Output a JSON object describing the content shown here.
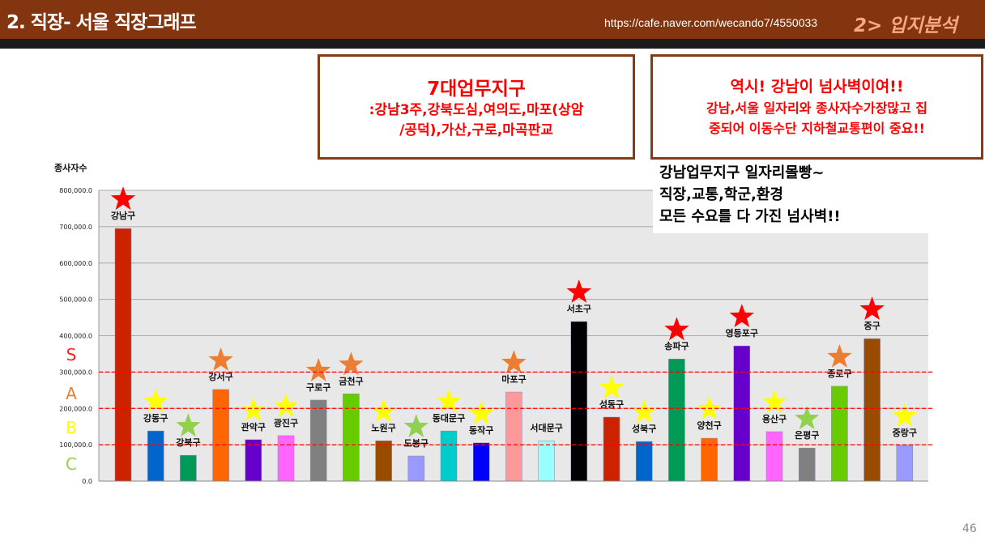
{
  "header": {
    "title": "2. 직장- 서울  직장그래프",
    "url": "https://cafe.naver.com/wecando7/4550033",
    "section": "2> 입지분석"
  },
  "box1": {
    "heading": "7대업무지구",
    "lines": [
      ":강남3주,강북도심,여의도,마포(상암",
      "/공덕),가산,구로,마곡판교"
    ]
  },
  "box2": {
    "heading": "역시! 강남이 넘사벽이여!!",
    "lines": [
      "강남,서울  일자리와 종사자수가장많고 집",
      "중되어 이동수단 지하철교통편이 중요!!"
    ]
  },
  "note": {
    "lines": [
      "강남업무지구 일자리몰빵~",
      "직장,교통,학군,환경",
      "모든 수요를 다 가진 넘사벽!!"
    ]
  },
  "page_number": "46",
  "chart_data": {
    "type": "bar",
    "title": "",
    "xlabel": "",
    "ylabel": "종사자수",
    "ylim": [
      0,
      800000
    ],
    "yticks": [
      "0.0",
      "100,000.0",
      "200,000.0",
      "300,000.0",
      "400,000.0",
      "500,000.0",
      "600,000.0",
      "700,000.0",
      "800,000.0"
    ],
    "categories": [
      "강남구",
      "강동구",
      "강북구",
      "강서구",
      "관악구",
      "광진구",
      "구로구",
      "금천구",
      "노원구",
      "도봉구",
      "동대문구",
      "동작구",
      "마포구",
      "서대문구",
      "서초구",
      "성동구",
      "성북구",
      "송파구",
      "양천구",
      "영등포구",
      "용산구",
      "은평구",
      "종로구",
      "중구",
      "중랑구"
    ],
    "values": [
      695000,
      138000,
      71000,
      252000,
      114000,
      125000,
      223000,
      240000,
      111000,
      69000,
      138000,
      105000,
      245000,
      111000,
      439000,
      176000,
      109000,
      336000,
      118000,
      372000,
      136000,
      91000,
      261000,
      392000,
      98000
    ],
    "bar_colors": [
      "#cc2200",
      "#0066cc",
      "#009955",
      "#ff6600",
      "#6600cc",
      "#ff66ff",
      "#808080",
      "#66cc00",
      "#994c00",
      "#9999ff",
      "#00cccc",
      "#0000ff",
      "#ff9999",
      "#99ffff",
      "#000000",
      "#cc2200",
      "#0066cc",
      "#009955",
      "#ff6600",
      "#6600cc",
      "#ff66ff",
      "#808080",
      "#66cc00",
      "#994c00",
      "#9999ff"
    ],
    "stars": [
      "red",
      "yellow",
      "green",
      "orange",
      "yellow",
      "yellow",
      "orange",
      "orange",
      "yellow",
      "green",
      "yellow",
      "yellow",
      "orange",
      "",
      "red",
      "yellow",
      "yellow",
      "red",
      "yellow",
      "red",
      "yellow",
      "green",
      "orange",
      "red",
      "yellow"
    ],
    "star_colors": {
      "red": "#ff0000",
      "orange": "#ed7d31",
      "yellow": "#ffff00",
      "green": "#92d050"
    },
    "thresholds": [
      100000,
      200000,
      300000
    ],
    "grades": [
      {
        "label": "S",
        "color": "#ff2020"
      },
      {
        "label": "A",
        "color": "#ed7d31"
      },
      {
        "label": "B",
        "color": "#ffff00"
      },
      {
        "label": "C",
        "color": "#92d050"
      }
    ]
  }
}
